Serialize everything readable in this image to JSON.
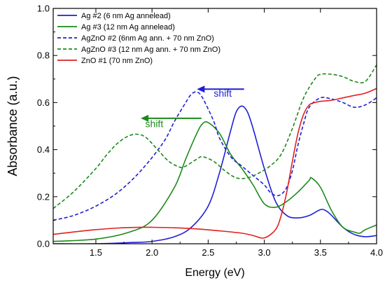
{
  "chart_data": {
    "type": "line",
    "title": "",
    "xlabel": "Energy (eV)",
    "ylabel": "Absorbance (a.u.)",
    "xlim": [
      1.12,
      4.0
    ],
    "ylim": [
      0.0,
      1.0
    ],
    "xticks": [
      "1.5",
      "2.0",
      "2.5",
      "3.0",
      "3.5",
      "4.0"
    ],
    "xtick_values": [
      1.5,
      2.0,
      2.5,
      3.0,
      3.5,
      4.0
    ],
    "yticks": [
      "0.0",
      "0.2",
      "0.4",
      "0.6",
      "0.8",
      "1.0"
    ],
    "ytick_values": [
      0.0,
      0.2,
      0.4,
      0.6,
      0.8,
      1.0
    ],
    "grid": false,
    "legend_position": "top-left",
    "series": [
      {
        "name": "Ag #2 (6 nm Ag annelead)",
        "color": "#1f1fd6",
        "dash": "solid",
        "x": [
          1.12,
          1.5,
          1.8,
          2.0,
          2.2,
          2.35,
          2.5,
          2.6,
          2.7,
          2.75,
          2.8,
          2.85,
          2.9,
          3.0,
          3.1,
          3.2,
          3.3,
          3.4,
          3.5,
          3.55,
          3.6,
          3.7,
          3.8,
          3.9,
          4.0
        ],
        "y": [
          0.0,
          0.0,
          0.005,
          0.01,
          0.03,
          0.07,
          0.16,
          0.3,
          0.48,
          0.56,
          0.585,
          0.56,
          0.49,
          0.32,
          0.18,
          0.12,
          0.11,
          0.12,
          0.145,
          0.14,
          0.12,
          0.07,
          0.04,
          0.03,
          0.035
        ]
      },
      {
        "name": "Ag #3 (12 nm Ag annelead)",
        "color": "#1a8a1a",
        "dash": "solid",
        "x": [
          1.12,
          1.5,
          1.8,
          2.0,
          2.2,
          2.3,
          2.4,
          2.45,
          2.5,
          2.6,
          2.7,
          2.8,
          2.9,
          3.0,
          3.1,
          3.2,
          3.3,
          3.4,
          3.42,
          3.5,
          3.6,
          3.7,
          3.8,
          3.85,
          3.9,
          4.0
        ],
        "y": [
          0.01,
          0.02,
          0.05,
          0.1,
          0.24,
          0.36,
          0.47,
          0.51,
          0.515,
          0.47,
          0.38,
          0.32,
          0.25,
          0.17,
          0.155,
          0.18,
          0.22,
          0.27,
          0.28,
          0.24,
          0.14,
          0.07,
          0.05,
          0.045,
          0.06,
          0.08
        ]
      },
      {
        "name": "AgZnO #2 (6nm Ag ann. + 70 nm ZnO)",
        "color": "#1f1fd6",
        "dash": "dashed",
        "x": [
          1.12,
          1.3,
          1.5,
          1.7,
          1.9,
          2.1,
          2.2,
          2.3,
          2.35,
          2.4,
          2.45,
          2.55,
          2.6,
          2.7,
          2.8,
          2.9,
          3.0,
          3.05,
          3.1,
          3.15,
          3.2,
          3.25,
          3.3,
          3.35,
          3.4,
          3.5,
          3.6,
          3.7,
          3.8,
          3.9,
          4.0
        ],
        "y": [
          0.1,
          0.12,
          0.16,
          0.22,
          0.31,
          0.43,
          0.52,
          0.6,
          0.635,
          0.645,
          0.62,
          0.52,
          0.45,
          0.37,
          0.33,
          0.29,
          0.25,
          0.22,
          0.205,
          0.21,
          0.24,
          0.31,
          0.42,
          0.51,
          0.58,
          0.62,
          0.615,
          0.6,
          0.58,
          0.59,
          0.62
        ]
      },
      {
        "name": "AgZnO #3 (12 nm Ag ann. + 70 nm ZnO)",
        "color": "#1a8a1a",
        "dash": "dashed",
        "x": [
          1.12,
          1.3,
          1.5,
          1.6,
          1.7,
          1.8,
          1.88,
          1.95,
          2.05,
          2.15,
          2.25,
          2.3,
          2.4,
          2.45,
          2.55,
          2.65,
          2.75,
          2.85,
          2.95,
          3.05,
          3.15,
          3.25,
          3.35,
          3.45,
          3.5,
          3.6,
          3.7,
          3.8,
          3.9,
          4.0
        ],
        "y": [
          0.15,
          0.22,
          0.32,
          0.38,
          0.43,
          0.46,
          0.465,
          0.45,
          0.4,
          0.35,
          0.325,
          0.33,
          0.36,
          0.37,
          0.35,
          0.31,
          0.28,
          0.28,
          0.3,
          0.33,
          0.38,
          0.49,
          0.62,
          0.7,
          0.72,
          0.72,
          0.71,
          0.69,
          0.69,
          0.76
        ]
      },
      {
        "name": "ZnO #1 (70 nm ZnO)",
        "color": "#e02020",
        "dash": "solid",
        "x": [
          1.12,
          1.3,
          1.5,
          1.7,
          1.9,
          2.0,
          2.2,
          2.4,
          2.6,
          2.8,
          2.9,
          3.0,
          3.1,
          3.15,
          3.2,
          3.25,
          3.3,
          3.35,
          3.4,
          3.45,
          3.5,
          3.6,
          3.7,
          3.8,
          3.9,
          4.0
        ],
        "y": [
          0.04,
          0.05,
          0.06,
          0.067,
          0.07,
          0.07,
          0.068,
          0.063,
          0.055,
          0.045,
          0.035,
          0.025,
          0.06,
          0.12,
          0.22,
          0.35,
          0.47,
          0.55,
          0.59,
          0.6,
          0.605,
          0.61,
          0.62,
          0.63,
          0.64,
          0.66
        ]
      }
    ],
    "annotations": [
      {
        "text": "shift",
        "color": "#1f1fd6",
        "arrow_from": [
          2.82,
          0.657
        ],
        "arrow_to": [
          2.4,
          0.657
        ],
        "text_at": [
          2.55,
          0.625
        ]
      },
      {
        "text": "shift",
        "color": "#1a8a1a",
        "arrow_from": [
          2.44,
          0.533
        ],
        "arrow_to": [
          1.9,
          0.533
        ],
        "text_at": [
          1.94,
          0.495
        ]
      }
    ]
  }
}
